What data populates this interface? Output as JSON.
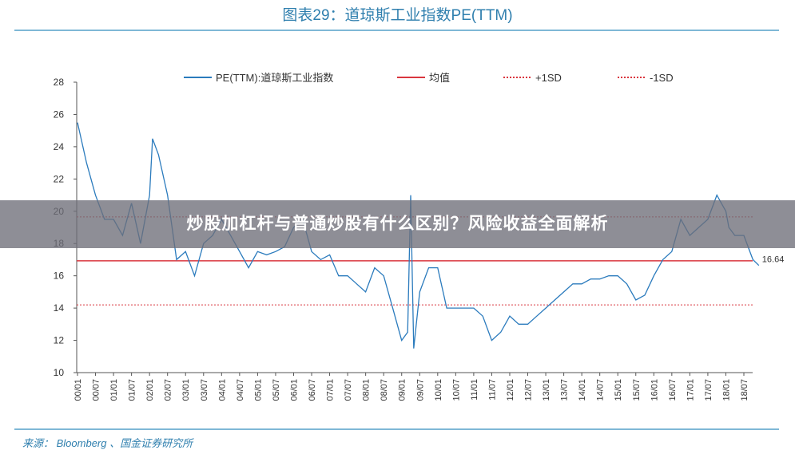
{
  "title": "图表29：道琼斯工业指数PE(TTM)",
  "source": "来源： Bloomberg 、国金证券研究所",
  "banner": "炒股加杠杆与普通炒股有什么区别？风险收益全面解析",
  "colors": {
    "series": "#2b7bbd",
    "mean": "#d9363e",
    "sd": "#d9363e",
    "title": "#2f7fae"
  },
  "chart_data": {
    "type": "line",
    "title": "图表29：道琼斯工业指数PE(TTM)",
    "xlabel": "",
    "ylabel": "",
    "ylim": [
      10,
      28
    ],
    "yticks": [
      10,
      12,
      14,
      16,
      18,
      20,
      22,
      24,
      26,
      28
    ],
    "xticks": [
      "00/01",
      "00/07",
      "01/01",
      "01/07",
      "02/01",
      "02/07",
      "03/01",
      "03/07",
      "04/01",
      "04/07",
      "05/01",
      "05/07",
      "06/01",
      "06/07",
      "07/01",
      "07/07",
      "08/01",
      "08/07",
      "09/01",
      "09/07",
      "10/01",
      "10/07",
      "11/01",
      "11/07",
      "12/01",
      "12/07",
      "13/01",
      "13/07",
      "14/01",
      "14/07",
      "15/01",
      "15/07",
      "16/01",
      "16/07",
      "17/01",
      "17/07",
      "18/01",
      "18/07"
    ],
    "legend_position": "top",
    "grid": false,
    "series": [
      {
        "name": "PE(TTM):道琼斯工业指数",
        "style": "solid",
        "x": [
          "2000-01",
          "2000-04",
          "2000-07",
          "2000-10",
          "2001-01",
          "2001-04",
          "2001-07",
          "2001-10",
          "2002-01",
          "2002-02",
          "2002-04",
          "2002-07",
          "2002-10",
          "2003-01",
          "2003-04",
          "2003-07",
          "2003-10",
          "2004-01",
          "2004-04",
          "2004-07",
          "2004-10",
          "2005-01",
          "2005-04",
          "2005-07",
          "2005-10",
          "2006-01",
          "2006-04",
          "2006-07",
          "2006-10",
          "2007-01",
          "2007-04",
          "2007-07",
          "2007-10",
          "2008-01",
          "2008-04",
          "2008-07",
          "2008-10",
          "2009-01",
          "2009-03",
          "2009-04",
          "2009-05",
          "2009-07",
          "2009-10",
          "2010-01",
          "2010-04",
          "2010-07",
          "2010-10",
          "2011-01",
          "2011-04",
          "2011-07",
          "2011-10",
          "2012-01",
          "2012-04",
          "2012-07",
          "2012-10",
          "2013-01",
          "2013-04",
          "2013-07",
          "2013-10",
          "2014-01",
          "2014-04",
          "2014-07",
          "2014-10",
          "2015-01",
          "2015-04",
          "2015-07",
          "2015-10",
          "2016-01",
          "2016-04",
          "2016-07",
          "2016-10",
          "2017-01",
          "2017-04",
          "2017-07",
          "2017-10",
          "2018-01",
          "2018-02",
          "2018-04",
          "2018-07",
          "2018-10",
          "2018-12"
        ],
        "y": [
          25.5,
          23,
          21,
          19.5,
          19.5,
          18.5,
          20.5,
          18,
          21,
          24.5,
          23.5,
          21,
          17,
          17.5,
          16,
          18,
          18.5,
          19.5,
          18.5,
          17.5,
          16.5,
          17.5,
          17.3,
          17.5,
          17.8,
          19,
          19.5,
          17.5,
          17,
          17.3,
          16,
          16,
          15.5,
          15,
          16.5,
          16,
          14,
          12,
          12.5,
          21,
          11.5,
          15,
          16.5,
          16.5,
          14,
          14,
          14,
          14,
          13.5,
          12,
          12.5,
          13.5,
          13,
          13,
          13.5,
          14,
          14.5,
          15,
          15.5,
          15.5,
          15.8,
          15.8,
          16,
          16,
          15.5,
          14.5,
          14.8,
          16,
          17,
          17.5,
          19.5,
          18.5,
          19,
          19.5,
          21,
          20,
          19,
          18.5,
          18.5,
          17,
          16.64
        ]
      },
      {
        "name": "均值",
        "style": "solid",
        "value": 16.93
      },
      {
        "name": "+1SD",
        "style": "dotted",
        "value": 19.65
      },
      {
        "name": "-1SD",
        "style": "dotted",
        "value": 14.2
      }
    ],
    "annotations": [
      {
        "text": "16.64"
      }
    ]
  }
}
